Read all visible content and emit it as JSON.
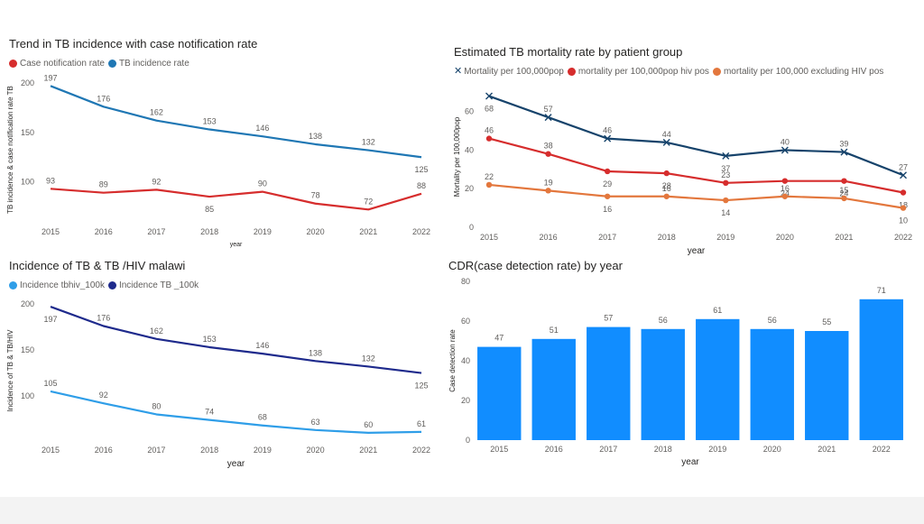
{
  "chart_data": [
    {
      "id": "c1",
      "type": "line",
      "title": "Trend in TB incidence with case notification rate",
      "xlabel": "year",
      "ylabel": "TB incidence & case notification rate TB",
      "categories": [
        "2015",
        "2016",
        "2017",
        "2018",
        "2019",
        "2020",
        "2021",
        "2022"
      ],
      "ylim": [
        65,
        200
      ],
      "yticks": [
        100,
        150,
        200
      ],
      "series": [
        {
          "name": "Case notification rate",
          "color": "#d62d2d",
          "values": [
            93,
            89,
            92,
            85,
            90,
            78,
            72,
            88
          ]
        },
        {
          "name": "TB incidence rate",
          "color": "#1f77b4",
          "values": [
            197,
            176,
            162,
            153,
            146,
            138,
            132,
            125
          ]
        }
      ]
    },
    {
      "id": "c2",
      "type": "line",
      "title": "Estimated TB mortality rate by patient group",
      "xlabel": "year",
      "ylabel": "Mortality per 100,000pop",
      "categories": [
        "2015",
        "2016",
        "2017",
        "2018",
        "2019",
        "2020",
        "2021",
        "2022"
      ],
      "ylim": [
        0,
        72
      ],
      "yticks": [
        0,
        20,
        40,
        60
      ],
      "series": [
        {
          "name": "Mortality  per 100,000pop",
          "color": "#16436b",
          "marker": "x",
          "values": [
            68,
            57,
            46,
            44,
            37,
            40,
            39,
            27
          ]
        },
        {
          "name": "mortality per 100,000pop hiv pos",
          "color": "#d62d2d",
          "values": [
            46,
            38,
            29,
            28,
            23,
            24,
            24,
            18
          ]
        },
        {
          "name": "mortality per 100,000 excluding HIV pos",
          "color": "#e3773d",
          "values": [
            22,
            19,
            16,
            16,
            14,
            16,
            15,
            10
          ]
        }
      ]
    },
    {
      "id": "c3",
      "type": "line",
      "title": "Incidence of TB & TB /HIV malawi",
      "xlabel": "year",
      "ylabel": "Incidence of TB & TB/HIV",
      "categories": [
        "2015",
        "2016",
        "2017",
        "2018",
        "2019",
        "2020",
        "2021",
        "2022"
      ],
      "ylim": [
        55,
        200
      ],
      "yticks": [
        100,
        150,
        200
      ],
      "series": [
        {
          "name": "Incidence tbhiv_100k",
          "color": "#2f9ee8",
          "values": [
            105,
            92,
            80,
            74,
            68,
            63,
            60,
            61
          ]
        },
        {
          "name": "Incidence TB _100k",
          "color": "#1e2a8c",
          "values": [
            197,
            176,
            162,
            153,
            146,
            138,
            132,
            125
          ]
        }
      ]
    },
    {
      "id": "c4",
      "type": "bar",
      "title": "CDR(case detection rate) by year",
      "xlabel": "year",
      "ylabel": "Case detection rate",
      "categories": [
        "2015",
        "2016",
        "2017",
        "2018",
        "2019",
        "2020",
        "2021",
        "2022"
      ],
      "ylim": [
        0,
        80
      ],
      "yticks": [
        0,
        20,
        40,
        60,
        80
      ],
      "series": [
        {
          "name": "Case detection rate",
          "color": "#118dff",
          "values": [
            47,
            51,
            57,
            56,
            61,
            56,
            55,
            71
          ]
        }
      ]
    }
  ]
}
